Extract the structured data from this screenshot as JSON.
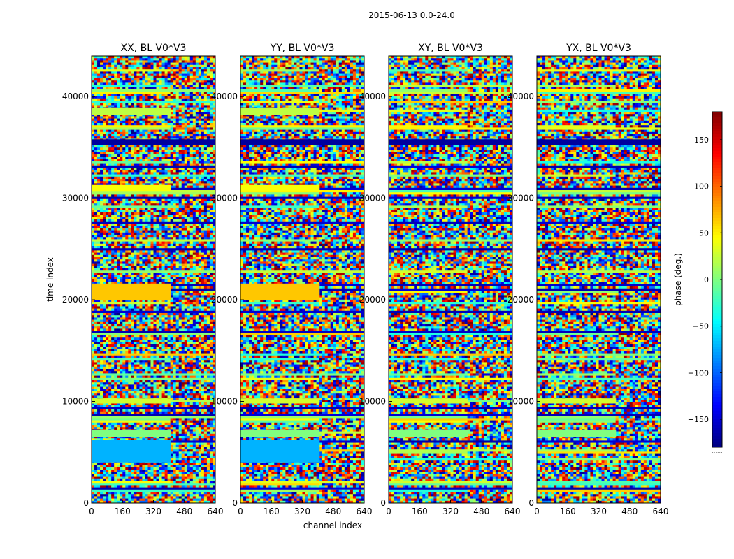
{
  "chart_data": {
    "type": "heatmap",
    "suptitle": "2015-06-13 0.0-24.0",
    "xlabel": "channel index",
    "ylabel": "time index",
    "xlim": [
      0,
      640
    ],
    "ylim": [
      0,
      44000
    ],
    "xticks": [
      0,
      160,
      320,
      480,
      640
    ],
    "yticks": [
      0,
      10000,
      20000,
      30000,
      40000
    ],
    "panels": [
      {
        "title": "XX, BL V0*V3"
      },
      {
        "title": "YY, BL V0*V3"
      },
      {
        "title": "XY, BL V0*V3"
      },
      {
        "title": "YX, BL V0*V3"
      }
    ],
    "colorbar": {
      "label": "phase (deg.)",
      "range": [
        -180,
        180
      ],
      "ticks": [
        150,
        100,
        50,
        0,
        -50,
        -100,
        -150
      ],
      "tick_labels": [
        "150",
        "100",
        "50",
        "0",
        "−50",
        "−100",
        "−150"
      ],
      "colormap": "jet",
      "footer": "......"
    }
  }
}
